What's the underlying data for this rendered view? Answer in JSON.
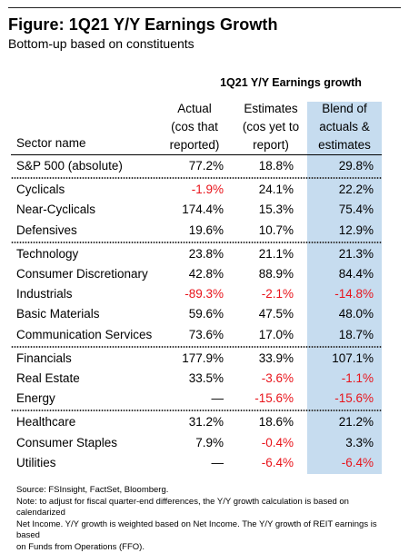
{
  "figure": {
    "title": "Figure: 1Q21 Y/Y Earnings Growth",
    "subtitle": "Bottom-up based on constituents"
  },
  "table": {
    "title": "1Q21 Y/Y Earnings growth",
    "headers": {
      "sector": "Sector name",
      "actual": [
        "Actual",
        "(cos that",
        "reported)"
      ],
      "estimates": [
        "Estimates",
        "(cos yet to",
        "report)"
      ],
      "blend": [
        "Blend of",
        "actuals &",
        "estimates"
      ]
    },
    "groups": [
      [
        {
          "sector": "S&P 500 (absolute)",
          "actual": "77.2%",
          "estimates": "18.8%",
          "blend": "29.8%"
        }
      ],
      [
        {
          "sector": "Cyclicals",
          "actual": "-1.9%",
          "estimates": "24.1%",
          "blend": "22.2%"
        },
        {
          "sector": "Near-Cyclicals",
          "actual": "174.4%",
          "estimates": "15.3%",
          "blend": "75.4%"
        },
        {
          "sector": "Defensives",
          "actual": "19.6%",
          "estimates": "10.7%",
          "blend": "12.9%"
        }
      ],
      [
        {
          "sector": "Technology",
          "actual": "23.8%",
          "estimates": "21.1%",
          "blend": "21.3%"
        },
        {
          "sector": "Consumer Discretionary",
          "actual": "42.8%",
          "estimates": "88.9%",
          "blend": "84.4%"
        },
        {
          "sector": "Industrials",
          "actual": "-89.3%",
          "estimates": "-2.1%",
          "blend": "-14.8%"
        },
        {
          "sector": "Basic Materials",
          "actual": "59.6%",
          "estimates": "47.5%",
          "blend": "48.0%"
        },
        {
          "sector": "Communication Services",
          "actual": "73.6%",
          "estimates": "17.0%",
          "blend": "18.7%"
        }
      ],
      [
        {
          "sector": "Financials",
          "actual": "177.9%",
          "estimates": "33.9%",
          "blend": "107.1%"
        },
        {
          "sector": "Real Estate",
          "actual": "33.5%",
          "estimates": "-3.6%",
          "blend": "-1.1%"
        },
        {
          "sector": "Energy",
          "actual": "—",
          "estimates": "-15.6%",
          "blend": "-15.6%"
        }
      ],
      [
        {
          "sector": "Healthcare",
          "actual": "31.2%",
          "estimates": "18.6%",
          "blend": "21.2%"
        },
        {
          "sector": "Consumer Staples",
          "actual": "7.9%",
          "estimates": "-0.4%",
          "blend": "3.3%"
        },
        {
          "sector": "Utilities",
          "actual": "—",
          "estimates": "-6.4%",
          "blend": "-6.4%"
        }
      ]
    ]
  },
  "source": [
    "Source: FSInsight, FactSet, Bloomberg.",
    "Note: to adjust for fiscal quarter-end differences, the Y/Y growth calculation is based on calendarized",
    "Net Income. Y/Y growth is weighted based on Net Income. The Y/Y growth of REIT earnings is based",
    "on Funds from Operations (FFO)."
  ],
  "colors": {
    "blend_column_bg": "#c6dcef",
    "negative": "#e8141b"
  }
}
